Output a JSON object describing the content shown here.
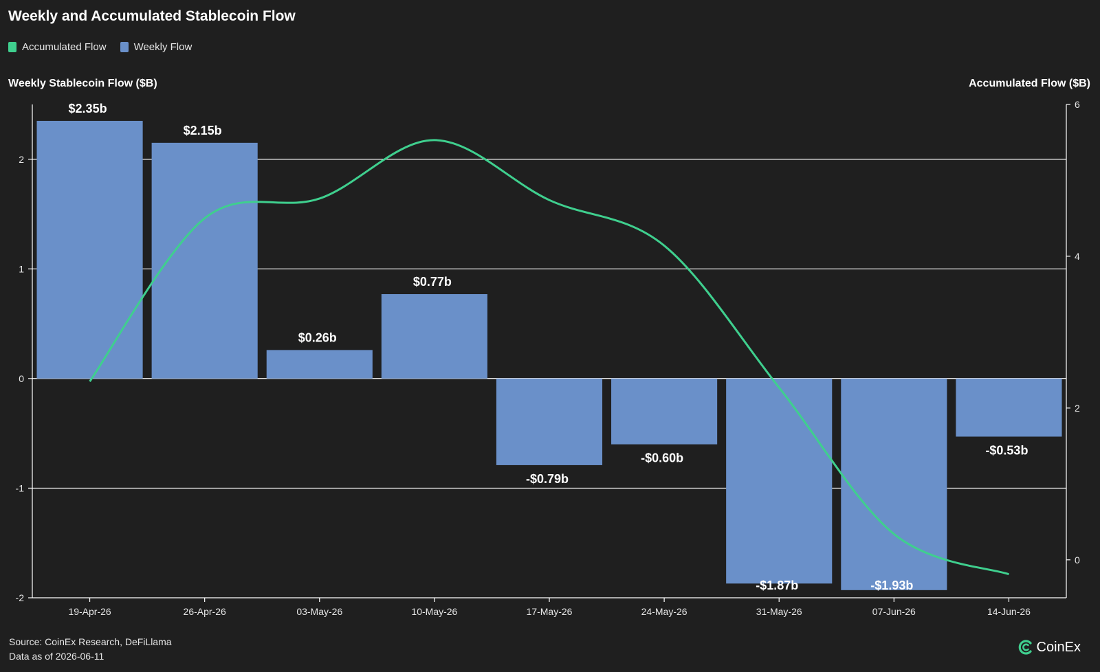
{
  "colors": {
    "accumulated": "#3fcf8e",
    "weekly": "#6a90c9",
    "background": "#1f1f1f",
    "grid": "#ffffff"
  },
  "chart_data": {
    "type": "bar",
    "title": "Weekly and Accumulated Stablecoin Flow",
    "legend": [
      "Accumulated Flow",
      "Weekly Flow"
    ],
    "ylabel_left": "Weekly Stablecoin Flow ($B)",
    "ylabel_right": "Accumulated Flow ($B)",
    "categories": [
      "19-Apr-26",
      "26-Apr-26",
      "03-May-26",
      "10-May-26",
      "17-May-26",
      "24-May-26",
      "31-May-26",
      "07-Jun-26",
      "14-Jun-26"
    ],
    "series": [
      {
        "name": "Weekly Flow",
        "type": "bar",
        "axis": "left",
        "values": [
          2.35,
          2.15,
          0.26,
          0.77,
          -0.79,
          -0.6,
          -1.87,
          -1.93,
          -0.53
        ],
        "labels": [
          "$2.35b",
          "$2.15b",
          "$0.26b",
          "$0.77b",
          "-$0.79b",
          "-$0.60b",
          "-$1.87b",
          "-$1.93b",
          "-$0.53b"
        ]
      },
      {
        "name": "Accumulated Flow",
        "type": "line",
        "axis": "right",
        "values": [
          2.35,
          4.5,
          4.76,
          5.53,
          4.74,
          4.14,
          2.27,
          0.34,
          -0.19
        ]
      }
    ],
    "ylim_left": [
      -2,
      2.5
    ],
    "yticks_left": [
      -2,
      -1,
      0,
      1,
      2
    ],
    "ylim_right": [
      -0.5,
      6
    ],
    "yticks_right": [
      0,
      2,
      4,
      6
    ],
    "grid": true,
    "legend_position": "top-left"
  },
  "footer": {
    "source": "Source: CoinEx Research, DeFiLlama",
    "date": "Data as of 2026-06-11",
    "logo_text": "CoinEx"
  }
}
